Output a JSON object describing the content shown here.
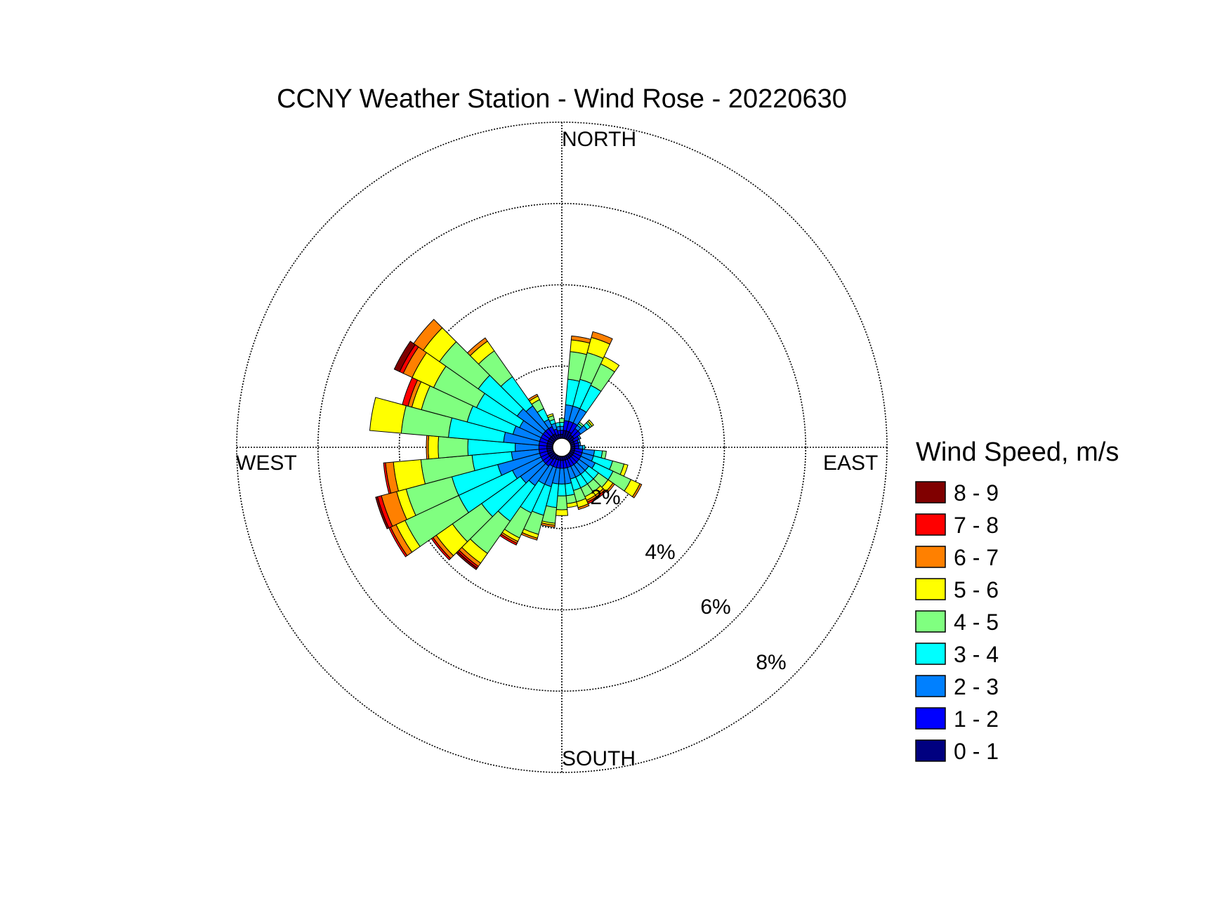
{
  "chart_data": {
    "type": "wind-rose",
    "title": "CCNY Weather Station - Wind Rose - 20220630",
    "direction_labels": [
      "NORTH",
      "EAST",
      "SOUTH",
      "WEST"
    ],
    "ring_values": [
      2,
      4,
      6,
      8
    ],
    "ring_labels": [
      "2%",
      "4%",
      "6%",
      "8%"
    ],
    "rmax_percent": 8,
    "legend": {
      "title": "Wind Speed, m/s",
      "placement": "right",
      "bins": [
        {
          "label": "8 - 9",
          "color": "#800000"
        },
        {
          "label": "7 - 8",
          "color": "#ff0000"
        },
        {
          "label": "6 - 7",
          "color": "#ff8000"
        },
        {
          "label": "5 - 6",
          "color": "#ffff00"
        },
        {
          "label": "4 - 5",
          "color": "#80ff80"
        },
        {
          "label": "3 - 4",
          "color": "#00ffff"
        },
        {
          "label": "2 - 3",
          "color": "#0080ff"
        },
        {
          "label": "1 - 2",
          "color": "#0000ff"
        },
        {
          "label": "0 - 1",
          "color": "#000080"
        }
      ]
    },
    "speed_bins": [
      "0 - 1",
      "1 - 2",
      "2 - 3",
      "3 - 4",
      "4 - 5",
      "5 - 6",
      "6 - 7",
      "7 - 8",
      "8 - 9"
    ],
    "sector_width_deg": 10,
    "sectors": [
      {
        "dir": 0,
        "values": [
          0.1,
          0.1,
          0.1,
          0.1,
          0.1,
          0.0,
          0.0,
          0.0,
          0.0
        ]
      },
      {
        "dir": 10,
        "values": [
          0.2,
          0.25,
          0.4,
          0.65,
          0.7,
          0.3,
          0.1,
          0.0,
          0.0
        ]
      },
      {
        "dir": 20,
        "values": [
          0.2,
          0.25,
          0.4,
          0.7,
          0.7,
          0.4,
          0.15,
          0.0,
          0.0
        ]
      },
      {
        "dir": 30,
        "values": [
          0.2,
          0.25,
          0.4,
          0.65,
          0.6,
          0.2,
          0.0,
          0.0,
          0.0
        ]
      },
      {
        "dir": 40,
        "values": [
          0.15,
          0.2,
          0.1,
          0.05,
          0.05,
          0.0,
          0.0,
          0.0,
          0.0
        ]
      },
      {
        "dir": 50,
        "values": [
          0.15,
          0.2,
          0.2,
          0.1,
          0.05,
          0.05,
          0.0,
          0.0,
          0.0
        ]
      },
      {
        "dir": 60,
        "values": [
          0.1,
          0.15,
          0.05,
          0.0,
          0.0,
          0.0,
          0.0,
          0.0,
          0.0
        ]
      },
      {
        "dir": 70,
        "values": [
          0.1,
          0.1,
          0.05,
          0.0,
          0.0,
          0.0,
          0.0,
          0.0,
          0.0
        ]
      },
      {
        "dir": 80,
        "values": [
          0.1,
          0.1,
          0.05,
          0.0,
          0.0,
          0.0,
          0.0,
          0.0,
          0.0
        ]
      },
      {
        "dir": 90,
        "values": [
          0.1,
          0.1,
          0.1,
          0.05,
          0.0,
          0.0,
          0.0,
          0.0,
          0.0
        ]
      },
      {
        "dir": 100,
        "values": [
          0.1,
          0.2,
          0.3,
          0.2,
          0.1,
          0.0,
          0.0,
          0.0,
          0.0
        ]
      },
      {
        "dir": 110,
        "values": [
          0.1,
          0.2,
          0.3,
          0.5,
          0.3,
          0.1,
          0.0,
          0.0,
          0.0
        ]
      },
      {
        "dir": 120,
        "values": [
          0.1,
          0.2,
          0.4,
          0.5,
          0.5,
          0.25,
          0.05,
          0.0,
          0.0
        ]
      },
      {
        "dir": 130,
        "values": [
          0.1,
          0.2,
          0.3,
          0.3,
          0.3,
          0.15,
          0.05,
          0.0,
          0.0
        ]
      },
      {
        "dir": 140,
        "values": [
          0.1,
          0.2,
          0.3,
          0.3,
          0.25,
          0.1,
          0.05,
          0.05,
          0.0
        ]
      },
      {
        "dir": 150,
        "values": [
          0.1,
          0.2,
          0.3,
          0.3,
          0.25,
          0.1,
          0.05,
          0.05,
          0.0
        ]
      },
      {
        "dir": 160,
        "values": [
          0.1,
          0.2,
          0.3,
          0.3,
          0.3,
          0.15,
          0.05,
          0.0,
          0.0
        ]
      },
      {
        "dir": 170,
        "values": [
          0.1,
          0.2,
          0.4,
          0.3,
          0.2,
          0.1,
          0.0,
          0.0,
          0.0
        ]
      },
      {
        "dir": 180,
        "values": [
          0.1,
          0.2,
          0.4,
          0.3,
          0.35,
          0.15,
          0.0,
          0.0,
          0.0
        ]
      },
      {
        "dir": 190,
        "values": [
          0.1,
          0.2,
          0.4,
          0.6,
          0.4,
          0.05,
          0.05,
          0.0,
          0.0
        ]
      },
      {
        "dir": 200,
        "values": [
          0.1,
          0.2,
          0.5,
          0.75,
          0.5,
          0.1,
          0.05,
          0.0,
          0.0
        ]
      },
      {
        "dir": 210,
        "values": [
          0.1,
          0.2,
          0.5,
          0.8,
          0.7,
          0.1,
          0.05,
          0.05,
          0.0
        ]
      },
      {
        "dir": 220,
        "values": [
          0.15,
          0.2,
          0.6,
          1.1,
          1.0,
          0.3,
          0.1,
          0.05,
          0.05
        ]
      },
      {
        "dir": 230,
        "values": [
          0.15,
          0.2,
          0.7,
          1.2,
          0.9,
          0.5,
          0.1,
          0.05,
          0.0
        ]
      },
      {
        "dir": 240,
        "values": [
          0.15,
          0.2,
          0.8,
          1.5,
          1.5,
          0.25,
          0.15,
          0.05,
          0.0
        ]
      },
      {
        "dir": 250,
        "values": [
          0.15,
          0.2,
          1.1,
          1.2,
          1.2,
          0.25,
          0.4,
          0.1,
          0.05
        ]
      },
      {
        "dir": 260,
        "values": [
          0.15,
          0.2,
          0.7,
          1.0,
          1.3,
          0.7,
          0.2,
          0.05,
          0.0
        ]
      },
      {
        "dir": 270,
        "values": [
          0.15,
          0.2,
          0.6,
          1.2,
          0.75,
          0.25,
          0.05,
          0.0,
          0.0
        ]
      },
      {
        "dir": 280,
        "values": [
          0.15,
          0.2,
          0.9,
          1.4,
          1.2,
          0.8,
          0.0,
          0.0,
          0.0
        ]
      },
      {
        "dir": 290,
        "values": [
          0.15,
          0.2,
          0.7,
          1.2,
          1.2,
          0.25,
          0.1,
          0.15,
          0.0
        ]
      },
      {
        "dir": 300,
        "values": [
          0.15,
          0.2,
          0.6,
          1.2,
          1.2,
          0.6,
          0.25,
          0.1,
          0.15
        ]
      },
      {
        "dir": 310,
        "values": [
          0.15,
          0.2,
          0.8,
          1.2,
          1.2,
          0.5,
          0.3,
          0.0,
          0.0
        ]
      },
      {
        "dir": 320,
        "values": [
          0.15,
          0.2,
          0.7,
          0.9,
          0.8,
          0.3,
          0.1,
          0.0,
          0.0
        ]
      },
      {
        "dir": 330,
        "values": [
          0.15,
          0.2,
          0.2,
          0.3,
          0.25,
          0.1,
          0.05,
          0.0,
          0.0
        ]
      },
      {
        "dir": 340,
        "values": [
          0.1,
          0.15,
          0.15,
          0.1,
          0.1,
          0.05,
          0.0,
          0.0,
          0.0
        ]
      },
      {
        "dir": 350,
        "values": [
          0.1,
          0.1,
          0.1,
          0.1,
          0.0,
          0.0,
          0.0,
          0.0,
          0.0
        ]
      }
    ]
  }
}
